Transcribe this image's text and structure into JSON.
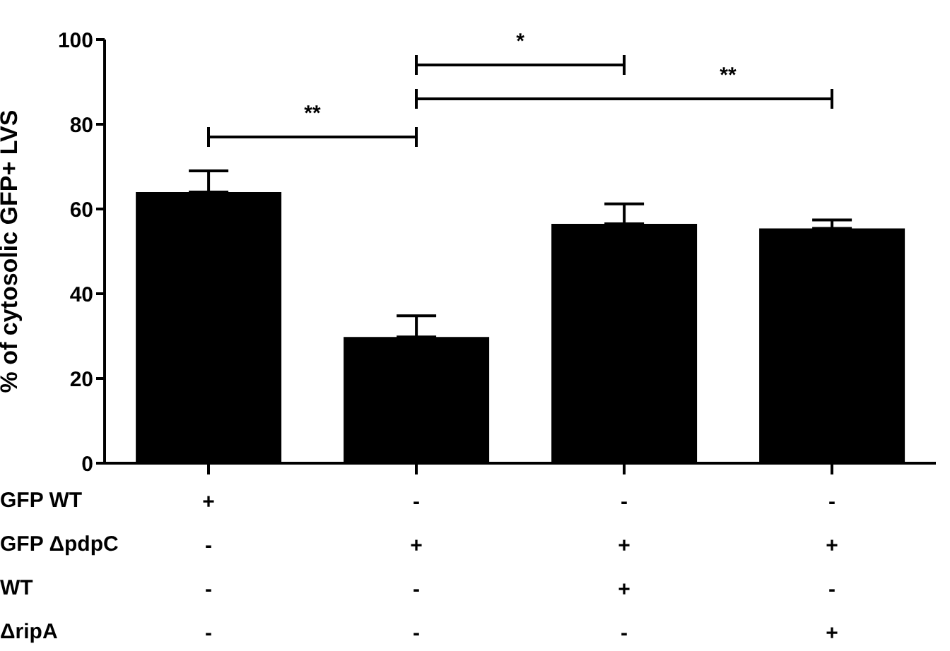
{
  "chart_data": {
    "type": "bar",
    "ylabel": "% of cytosolic GFP+ LVS",
    "categories": [
      "+\n-\n-\n-",
      "-\n+\n-\n-",
      "-\n+\n+\n-",
      "-\n+\n-\n+"
    ],
    "values": [
      64,
      29.8,
      56.5,
      55.4
    ],
    "errors": [
      5,
      5,
      4.7,
      2
    ],
    "color": "#000000",
    "ylim": [
      0,
      100
    ],
    "yticks": [
      0,
      20,
      40,
      60,
      80,
      100
    ],
    "grid": false,
    "legend": false,
    "annotations": [
      "GFP WT",
      "GFP ΔpdpC",
      "WT",
      "ΔripA",
      "**",
      "*",
      "**"
    ]
  }
}
